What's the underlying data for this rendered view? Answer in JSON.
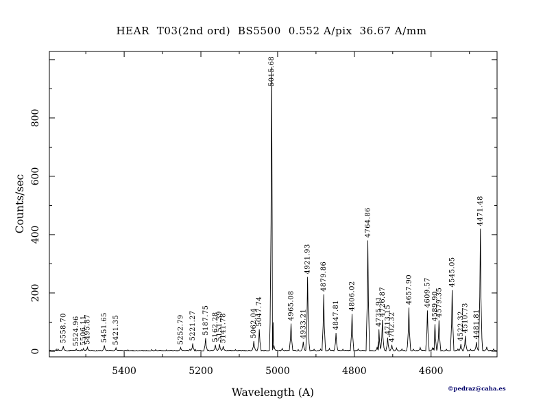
{
  "title": "HEAR  T03(2nd ord)  BS5500  0.552 A/pix  36.67 A/mm",
  "watermark": "©pedraz@caha.es",
  "colors": {
    "trace": "#000000",
    "axis": "#000000",
    "watermark": "#00006a",
    "background": "#ffffff"
  },
  "chart_data": {
    "type": "line",
    "title": "HEAR  T03(2nd ord)  BS5500  0.552 A/pix  36.67 A/mm",
    "xlabel": "Wavelength (A)",
    "ylabel": "Counts/sec",
    "x_tick_labels": [
      "5400",
      "5200",
      "5000",
      "4800",
      "4600"
    ],
    "y_tick_labels": [
      "0",
      "200",
      "400",
      "600",
      "800"
    ],
    "x_axis_reversed": true,
    "x_range_left_to_right": [
      5595,
      4428
    ],
    "y_range": [
      -19,
      1028
    ],
    "grid": false,
    "legend": false,
    "peaks": [
      {
        "wavelength": 5558.7,
        "counts": 18,
        "label": "5558.70"
      },
      {
        "wavelength": 5524.96,
        "counts": 8,
        "label": "5524.96"
      },
      {
        "wavelength": 5506.11,
        "counts": 10,
        "label": "5506.11"
      },
      {
        "wavelength": 5495.87,
        "counts": 14,
        "label": "5495.87"
      },
      {
        "wavelength": 5451.65,
        "counts": 20,
        "label": "5451.65"
      },
      {
        "wavelength": 5421.35,
        "counts": 12,
        "label": "5421.35"
      },
      {
        "wavelength": 5252.79,
        "counts": 13,
        "label": "5252.79"
      },
      {
        "wavelength": 5221.27,
        "counts": 27,
        "label": "5221.27"
      },
      {
        "wavelength": 5187.75,
        "counts": 45,
        "label": "5187.75"
      },
      {
        "wavelength": 5162.28,
        "counts": 22,
        "label": "5162.28"
      },
      {
        "wavelength": 5151.39,
        "counts": 25,
        "label": "5151.39"
      },
      {
        "wavelength": 5141.78,
        "counts": 18,
        "label": "5141.78"
      },
      {
        "wavelength": 5062.04,
        "counts": 35,
        "label": "5062.04"
      },
      {
        "wavelength": 5047.74,
        "counts": 75,
        "label": "5047.74"
      },
      {
        "wavelength": 5015.68,
        "counts": 975,
        "label": "5015.68"
      },
      {
        "wavelength": 4965.08,
        "counts": 95,
        "label": "4965.08"
      },
      {
        "wavelength": 4933.21,
        "counts": 33,
        "label": "4933.21"
      },
      {
        "wavelength": 4921.93,
        "counts": 255,
        "label": "4921.93"
      },
      {
        "wavelength": 4879.86,
        "counts": 195,
        "label": "4879.86"
      },
      {
        "wavelength": 4847.81,
        "counts": 63,
        "label": "4847.81"
      },
      {
        "wavelength": 4806.02,
        "counts": 128,
        "label": "4806.02"
      },
      {
        "wavelength": 4764.86,
        "counts": 380,
        "label": "4764.86"
      },
      {
        "wavelength": 4735.91,
        "counts": 75,
        "label": "4735.91"
      },
      {
        "wavelength": 4726.87,
        "counts": 108,
        "label": "4726.87"
      },
      {
        "wavelength": 4713.15,
        "counts": 47,
        "label": "4713.15"
      },
      {
        "wavelength": 4702.32,
        "counts": 22,
        "label": "4702.32"
      },
      {
        "wavelength": 4657.9,
        "counts": 150,
        "label": "4657.90"
      },
      {
        "wavelength": 4609.57,
        "counts": 140,
        "label": "4609.57"
      },
      {
        "wavelength": 4589.9,
        "counts": 93,
        "label": "4589.90"
      },
      {
        "wavelength": 4579.35,
        "counts": 106,
        "label": "4579.35"
      },
      {
        "wavelength": 4545.05,
        "counts": 210,
        "label": "4545.05"
      },
      {
        "wavelength": 4522.32,
        "counts": 25,
        "label": "4522.32"
      },
      {
        "wavelength": 4510.73,
        "counts": 53,
        "label": "4510.73"
      },
      {
        "wavelength": 4481.81,
        "counts": 32,
        "label": "4481.81"
      },
      {
        "wavelength": 4471.48,
        "counts": 420,
        "label": "4471.48"
      }
    ],
    "minor_unlabeled_peaks": [
      [
        5577.0,
        7
      ],
      [
        5572.5,
        9
      ],
      [
        5390.0,
        5
      ],
      [
        5318.0,
        6
      ],
      [
        5290.0,
        5
      ],
      [
        5110.0,
        6
      ],
      [
        5009.5,
        20
      ],
      [
        4988.0,
        10
      ],
      [
        4905.0,
        7
      ],
      [
        4888.0,
        8
      ],
      [
        4865.0,
        10
      ],
      [
        4830.0,
        7
      ],
      [
        4790.0,
        8
      ],
      [
        4741.0,
        13
      ],
      [
        4690.0,
        11
      ],
      [
        4676.0,
        8
      ],
      [
        4628.4,
        13
      ],
      [
        4596.0,
        12
      ],
      [
        4560.0,
        7
      ],
      [
        4530.0,
        8
      ],
      [
        4497.0,
        7
      ],
      [
        4454.9,
        15
      ],
      [
        4437.0,
        8
      ]
    ]
  }
}
